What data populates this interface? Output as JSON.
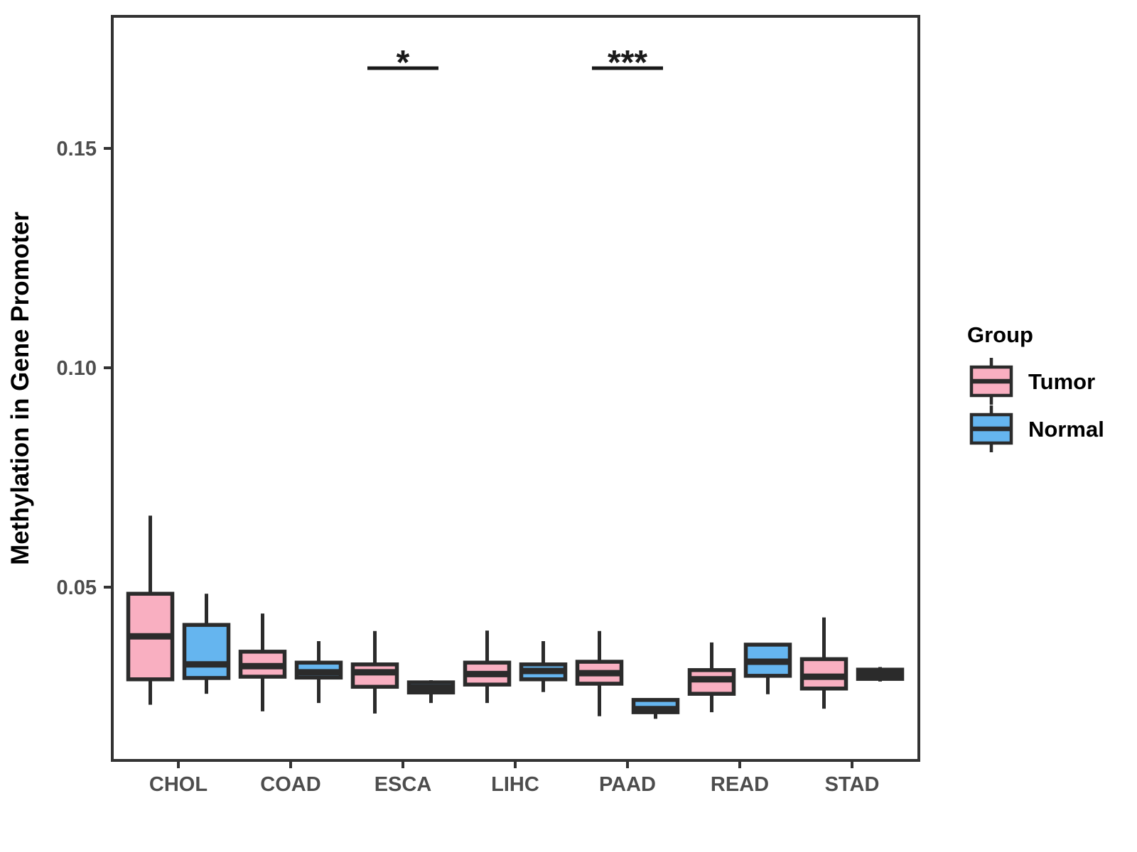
{
  "chart_data": {
    "type": "boxplot",
    "title": "",
    "ylabel": "Methylation in Gene Promoter",
    "xlabel": "",
    "categories": [
      "CHOL",
      "COAD",
      "ESCA",
      "LIHC",
      "PAAD",
      "READ",
      "STAD"
    ],
    "groups": [
      "Tumor",
      "Normal"
    ],
    "yticks": [
      0.05,
      0.1,
      0.15
    ],
    "ytick_labels": [
      "0.05",
      "0.10",
      "0.15"
    ],
    "ylim": [
      0.011,
      0.18
    ],
    "grid": false,
    "legend_position": "right",
    "legend_title": "Group",
    "colors": {
      "tumor_fill": "#F9AFC1",
      "normal_fill": "#65B5EF",
      "box_stroke": "#2B2B2B",
      "axis": "#333333",
      "tick_label": "#4D4D4D",
      "text": "#000000",
      "background": "#FFFFFF"
    },
    "significance": [
      {
        "category": "ESCA",
        "label": "*"
      },
      {
        "category": "PAAD",
        "label": "***"
      }
    ],
    "series": [
      {
        "name": "Tumor",
        "color": "#F9AFC1",
        "boxes": [
          {
            "category": "CHOL",
            "low": 0.0232,
            "q1": 0.029,
            "median": 0.0388,
            "q3": 0.0485,
            "high": 0.0663
          },
          {
            "category": "COAD",
            "low": 0.0217,
            "q1": 0.0296,
            "median": 0.032,
            "q3": 0.0353,
            "high": 0.044
          },
          {
            "category": "ESCA",
            "low": 0.0212,
            "q1": 0.0273,
            "median": 0.0306,
            "q3": 0.0324,
            "high": 0.04
          },
          {
            "category": "LIHC",
            "low": 0.0236,
            "q1": 0.0278,
            "median": 0.0302,
            "q3": 0.0328,
            "high": 0.0401
          },
          {
            "category": "PAAD",
            "low": 0.0206,
            "q1": 0.028,
            "median": 0.0304,
            "q3": 0.033,
            "high": 0.04
          },
          {
            "category": "READ",
            "low": 0.0215,
            "q1": 0.0257,
            "median": 0.029,
            "q3": 0.0311,
            "high": 0.0374
          },
          {
            "category": "STAD",
            "low": 0.0223,
            "q1": 0.0269,
            "median": 0.0296,
            "q3": 0.0336,
            "high": 0.0431
          }
        ]
      },
      {
        "name": "Normal",
        "color": "#65B5EF",
        "boxes": [
          {
            "category": "CHOL",
            "low": 0.0257,
            "q1": 0.0293,
            "median": 0.0324,
            "q3": 0.0414,
            "high": 0.0485
          },
          {
            "category": "COAD",
            "low": 0.0236,
            "q1": 0.0294,
            "median": 0.0306,
            "q3": 0.0328,
            "high": 0.0377
          },
          {
            "category": "ESCA",
            "low": 0.0236,
            "q1": 0.026,
            "median": 0.0271,
            "q3": 0.0283,
            "high": 0.0288
          },
          {
            "category": "LIHC",
            "low": 0.0261,
            "q1": 0.029,
            "median": 0.0309,
            "q3": 0.0324,
            "high": 0.0377
          },
          {
            "category": "PAAD",
            "low": 0.02,
            "q1": 0.0215,
            "median": 0.0222,
            "q3": 0.0243,
            "high": 0.0243
          },
          {
            "category": "READ",
            "low": 0.0256,
            "q1": 0.0298,
            "median": 0.033,
            "q3": 0.0369,
            "high": 0.0369
          },
          {
            "category": "STAD",
            "low": 0.0285,
            "q1": 0.0291,
            "median": 0.0301,
            "q3": 0.0312,
            "high": 0.0318
          }
        ]
      }
    ],
    "legend": {
      "title": "Group",
      "items": [
        {
          "label": "Tumor",
          "color": "#F9AFC1"
        },
        {
          "label": "Normal",
          "color": "#65B5EF"
        }
      ]
    }
  }
}
